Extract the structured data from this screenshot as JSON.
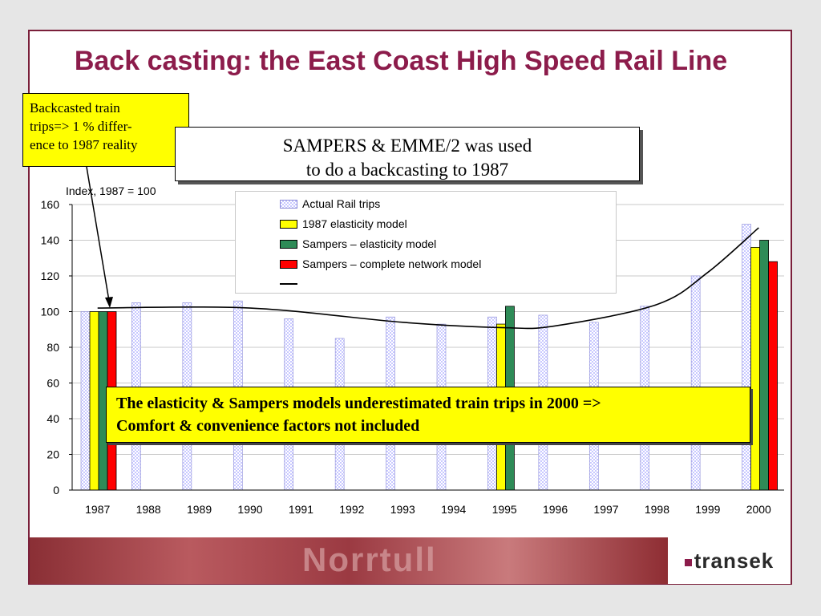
{
  "slide": {
    "title": "Back casting: the East Coast High Speed Rail Line",
    "callout_top": [
      "Backcasted train",
      "trips=> 1 % differ-",
      "ence to 1987 reality"
    ],
    "subtitle": [
      "SAMPERS & EMME/2 was used",
      "to do a backcasting to 1987"
    ],
    "callout_bottom": [
      "The elasticity & Sampers models underestimated train trips in 2000 =>",
      "Comfort & convenience factors not included"
    ],
    "footer_word": "Norrtull",
    "brand": "transek"
  },
  "colors": {
    "title": "#8c1c4b",
    "actual": "#c8c8ff",
    "elasticity_1987": "#ffff00",
    "sampers_elasticity": "#2e8b57",
    "sampers_network": "#ff0000",
    "highlight": "#ffff00"
  },
  "chart_data": {
    "type": "bar",
    "ylabel": "Index, 1987 = 100",
    "ylim": [
      0,
      160
    ],
    "yticks": [
      0,
      20,
      40,
      60,
      80,
      100,
      120,
      140,
      160
    ],
    "categories": [
      "1987",
      "1988",
      "1989",
      "1990",
      "1991",
      "1992",
      "1993",
      "1994",
      "1995",
      "1996",
      "1997",
      "1998",
      "1999",
      "2000"
    ],
    "series": [
      {
        "name": "Actual Rail trips",
        "values": [
          100,
          105,
          105,
          106,
          96,
          85,
          97,
          93,
          97,
          98,
          94,
          103,
          120,
          149
        ]
      },
      {
        "name": "1987 elasticity model",
        "values": [
          100,
          null,
          null,
          null,
          null,
          null,
          null,
          null,
          93,
          null,
          null,
          null,
          null,
          136
        ]
      },
      {
        "name": "Sampers – elasticity model",
        "values": [
          100,
          null,
          null,
          null,
          null,
          null,
          null,
          null,
          103,
          null,
          null,
          null,
          null,
          140
        ]
      },
      {
        "name": "Sampers – complete network model",
        "values": [
          100,
          null,
          null,
          null,
          null,
          null,
          null,
          null,
          null,
          null,
          null,
          null,
          null,
          128
        ]
      }
    ],
    "trend_line": {
      "x": [
        "1987",
        "1990",
        "1993",
        "1995",
        "1996",
        "1998",
        "1999",
        "2000"
      ],
      "values": [
        102,
        102,
        94,
        91,
        92,
        104,
        122,
        147
      ]
    },
    "grid": true,
    "legend_position": "top"
  }
}
